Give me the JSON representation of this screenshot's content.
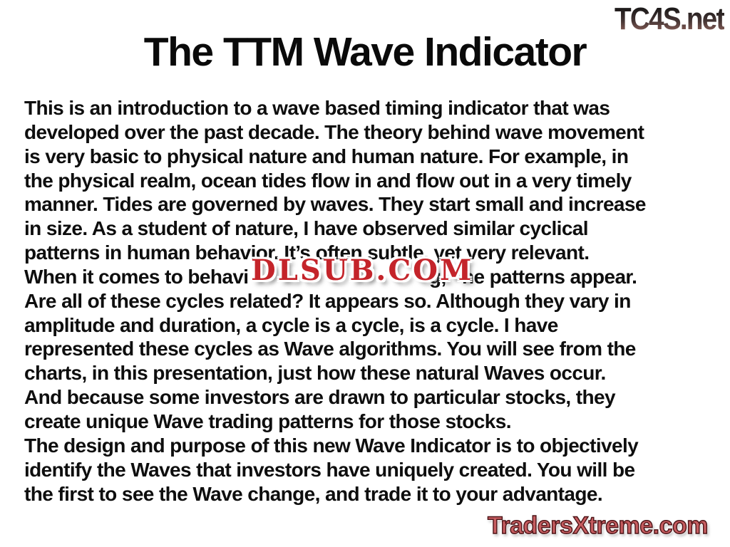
{
  "title": "The TTM Wave Indicator",
  "watermarks": {
    "top_right": "TC4S.net",
    "center": "DLSUB.COM",
    "bottom_right": "TradersXtreme.com"
  },
  "colors": {
    "background": "#ffffff",
    "text": "#0e0e0e",
    "dlsub_red": "#c4242a",
    "traders_fill": "#c65d60",
    "traders_outline": "#4b1316",
    "tc4s_gradient_top": "#1d1a1a",
    "tc4s_gradient_bottom": "#9c6b62"
  },
  "body": {
    "lines_before": [
      "This is an introduction to a wave based timing indicator that was",
      "developed over the past decade. The theory behind wave movement",
      "is very basic to physical nature and human nature. For example, in",
      "the physical realm, ocean tides flow in and flow out in a very timely",
      "manner. Tides are governed by waves. They start small and increase",
      "in size. As a student of nature, I have observed similar cyclical",
      "patterns in human behavior. It’s often subtle, yet very relevant."
    ],
    "obscured_line": {
      "before": "When it comes to behavi",
      "partially_hidden": "g,",
      "after": "ne patterns appear."
    },
    "lines_after": [
      "Are all of these cycles related? It appears so. Although they vary in",
      "amplitude and duration, a cycle is a cycle, is a cycle. I have",
      "represented these cycles as Wave algorithms. You will see from the",
      "charts, in this presentation, just how these natural Waves occur.",
      "And because some investors are drawn to particular stocks, they",
      "create unique Wave trading patterns for those stocks.",
      "The design and purpose of this new Wave Indicator is to objectively",
      "identify the Waves that investors have uniquely created. You will be",
      "the first to see the Wave change, and trade it to your advantage."
    ]
  }
}
